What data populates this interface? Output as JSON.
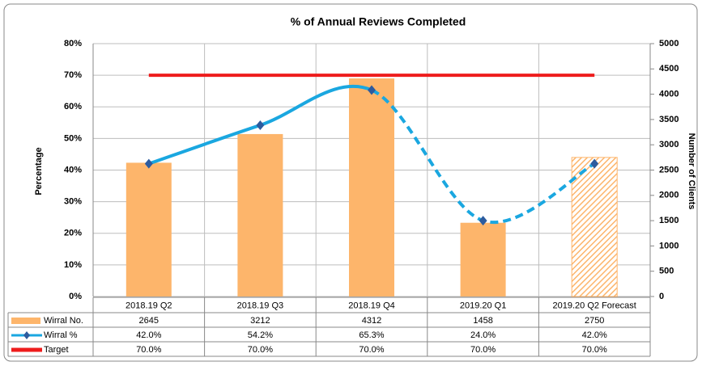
{
  "chart_data": {
    "type": "bar-line",
    "title": "% of Annual Reviews Completed",
    "ylabel": "Percentage",
    "y2label": "Number of Clients",
    "categories": [
      "2018.19 Q2",
      "2018.19 Q3",
      "2018.19 Q4",
      "2019.20 Q1",
      "2019.20 Q2 Forecast"
    ],
    "ylim": [
      0,
      80
    ],
    "yticks": [
      {
        "value": 0,
        "label": "0%"
      },
      {
        "value": 10,
        "label": "10%"
      },
      {
        "value": 20,
        "label": "20%"
      },
      {
        "value": 30,
        "label": "30%"
      },
      {
        "value": 40,
        "label": "40%"
      },
      {
        "value": 50,
        "label": "50%"
      },
      {
        "value": 60,
        "label": "60%"
      },
      {
        "value": 70,
        "label": "70%"
      },
      {
        "value": 80,
        "label": "80%"
      }
    ],
    "y2lim": [
      0,
      5000
    ],
    "y2ticks": [
      0,
      500,
      1000,
      1500,
      2000,
      2500,
      3000,
      3500,
      4000,
      4500,
      5000
    ],
    "grid": true,
    "series": [
      {
        "name": "Wirral No.",
        "type": "bar",
        "axis": "y2",
        "color": "#fdb56b",
        "hatched_from": 4,
        "values": [
          2645,
          3212,
          4312,
          1458,
          2750
        ]
      },
      {
        "name": "Wirral %",
        "type": "line",
        "smooth": true,
        "color": "#1aa7e0",
        "marker_color": "#2d5b9e",
        "dashed_from": 2,
        "values": [
          42.0,
          54.2,
          65.3,
          24.0,
          42.0
        ],
        "value_labels": [
          "42.0%",
          "54.2%",
          "65.3%",
          "24.0%",
          "42.0%"
        ]
      },
      {
        "name": "Target",
        "type": "line",
        "color": "#ee1c1c",
        "values": [
          70,
          70,
          70,
          70,
          70
        ],
        "value_labels": [
          "70.0%",
          "70.0%",
          "70.0%",
          "70.0%",
          "70.0%"
        ]
      }
    ]
  }
}
